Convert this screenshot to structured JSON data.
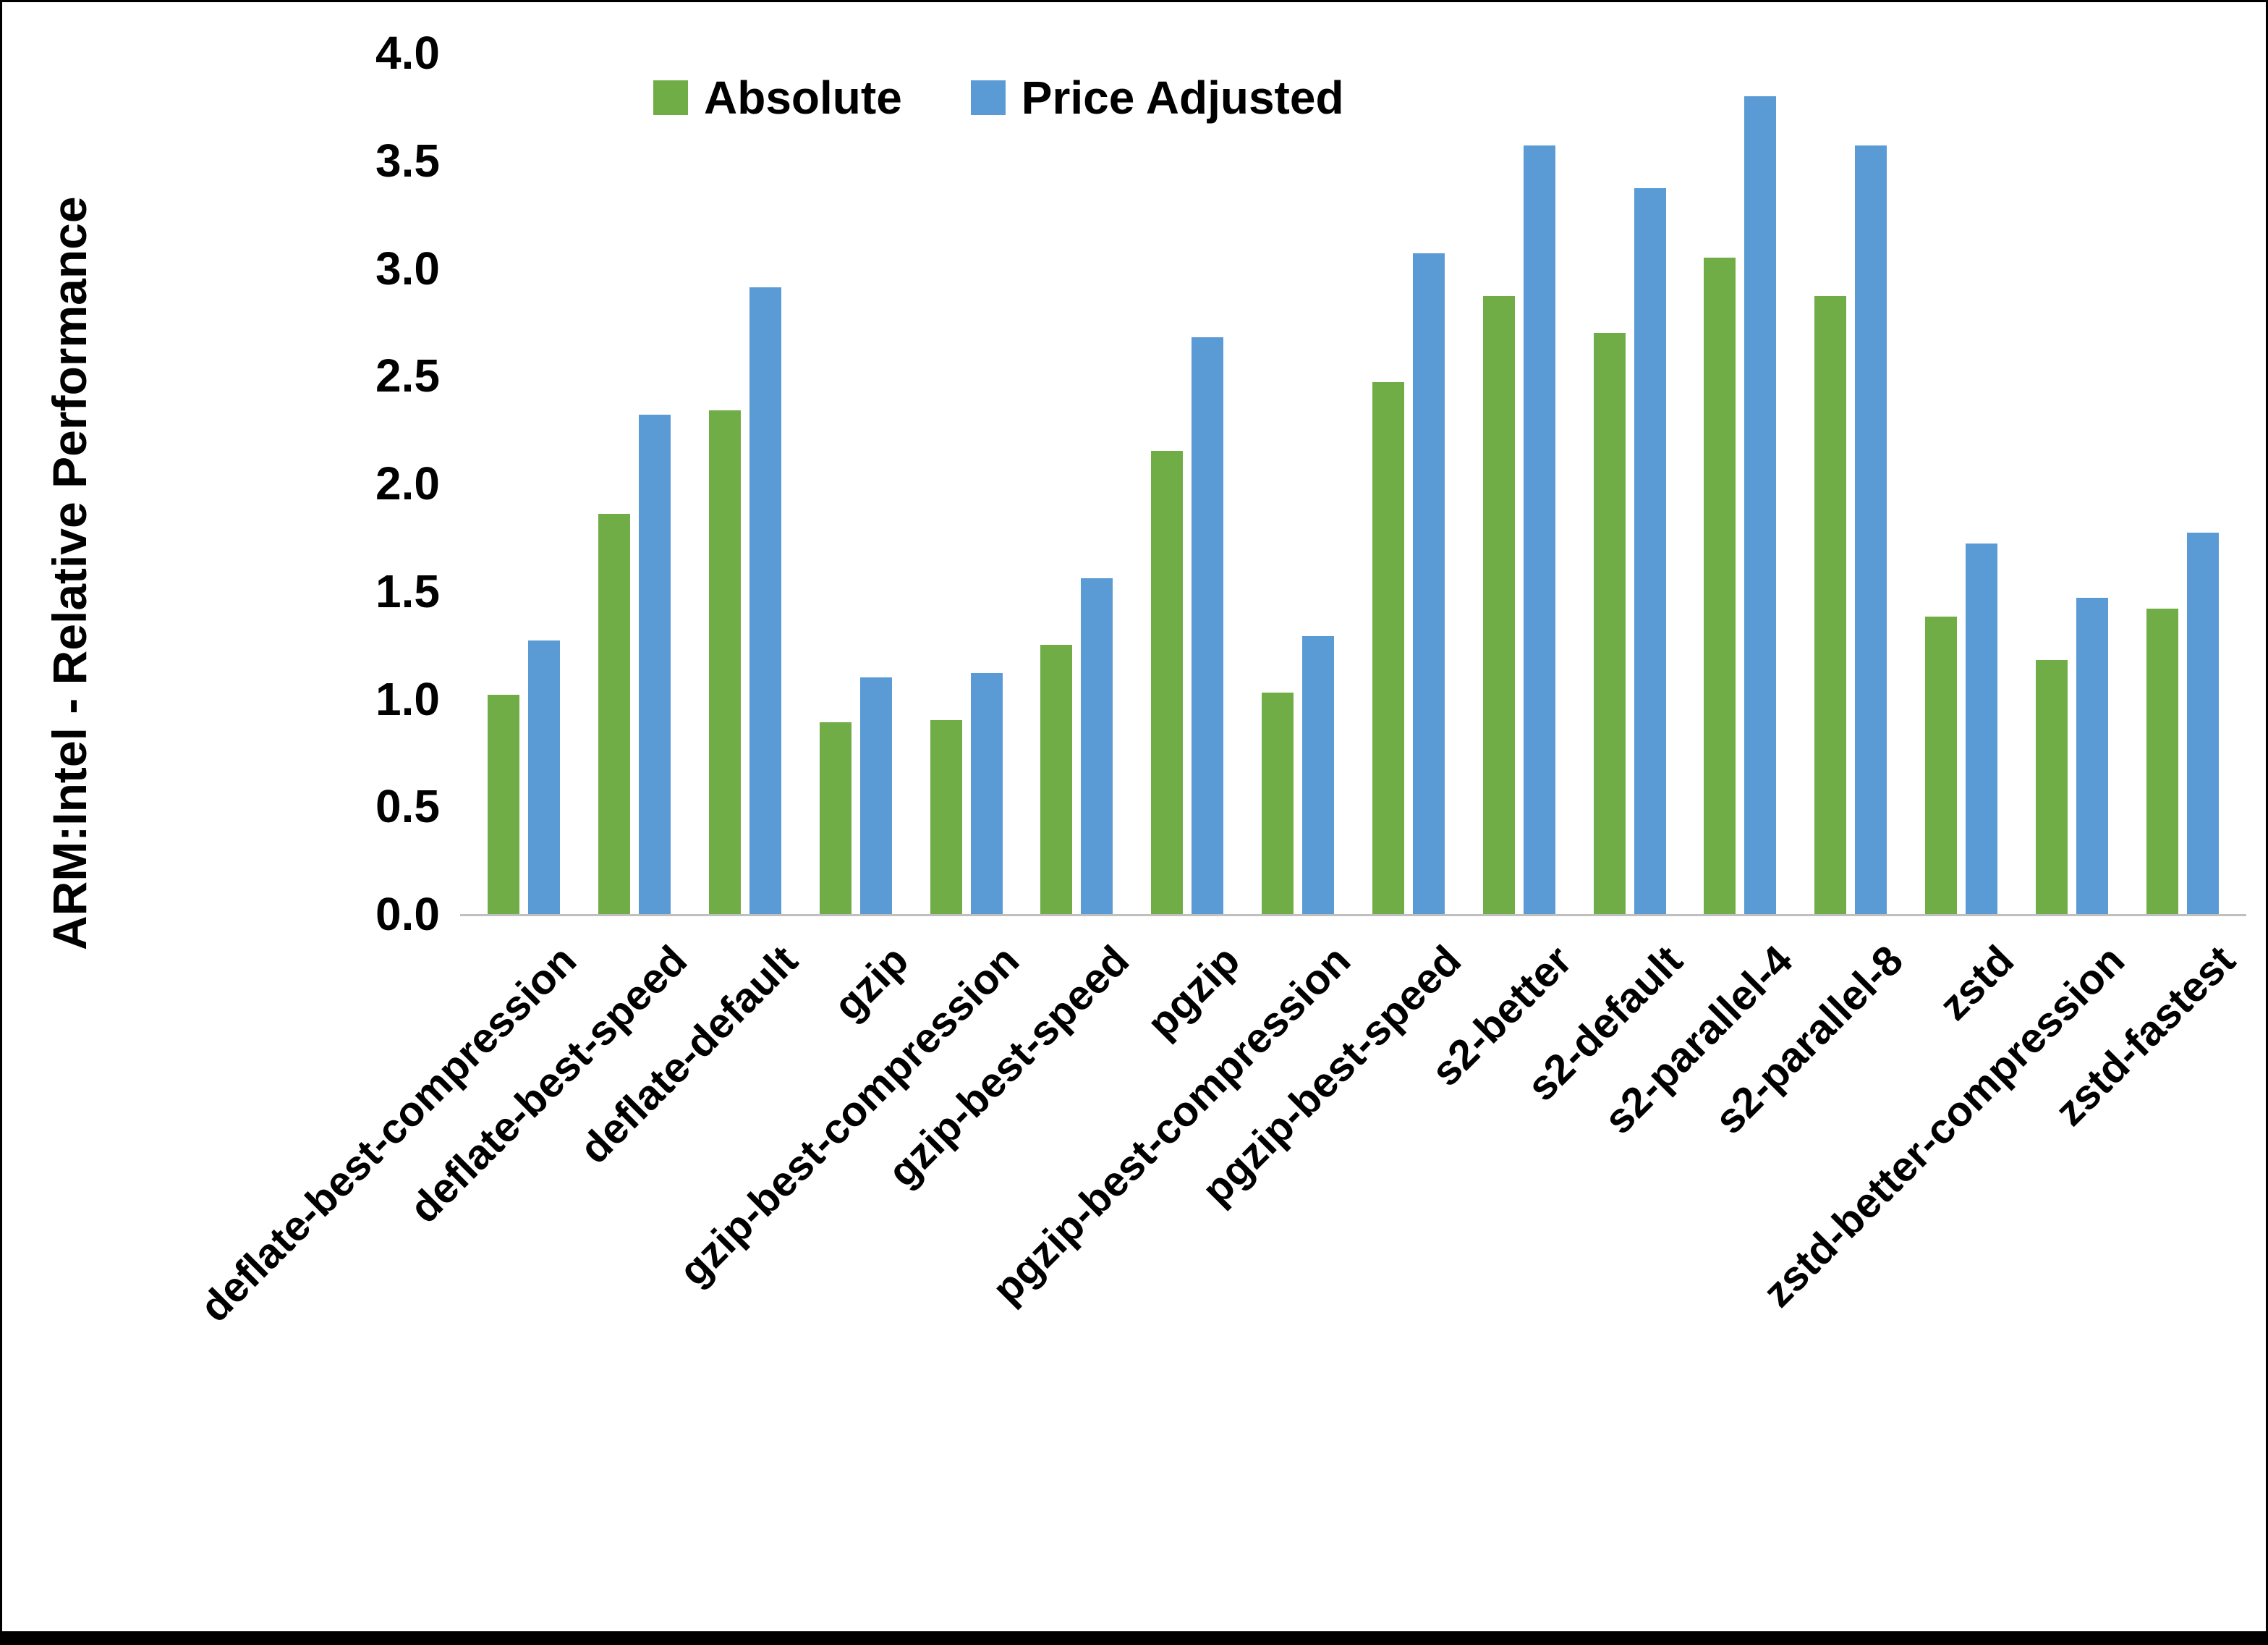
{
  "chart_data": {
    "type": "bar",
    "title": "",
    "ylabel": "ARM:Intel - Relative Performance",
    "xlabel": "",
    "ylim": [
      0.0,
      4.0
    ],
    "yticks": [
      0.0,
      0.5,
      1.0,
      1.5,
      2.0,
      2.5,
      3.0,
      3.5,
      4.0
    ],
    "grid": false,
    "legend_position": "top-center",
    "categories": [
      "deflate-best-compression",
      "deflate-best-speed",
      "deflate-default",
      "gzip",
      "gzip-best-compression",
      "gzip-best-speed",
      "pgzip",
      "pgzip-best-compression",
      "pgzip-best-speed",
      "s2-better",
      "s2-default",
      "s2-parallel-4",
      "s2-parallel-8",
      "zstd",
      "zstd-better-compression",
      "zstd-fastest"
    ],
    "series": [
      {
        "name": "Absolute",
        "color": "#70AD47",
        "values": [
          1.02,
          1.86,
          2.34,
          0.89,
          0.9,
          1.25,
          2.15,
          1.03,
          2.47,
          2.87,
          2.7,
          3.05,
          2.87,
          1.38,
          1.18,
          1.42
        ]
      },
      {
        "name": "Price Adjusted",
        "color": "#5B9BD5",
        "values": [
          1.27,
          2.32,
          2.91,
          1.1,
          1.12,
          1.56,
          2.68,
          1.29,
          3.07,
          3.57,
          3.37,
          3.8,
          3.57,
          1.72,
          1.47,
          1.77
        ]
      }
    ]
  }
}
